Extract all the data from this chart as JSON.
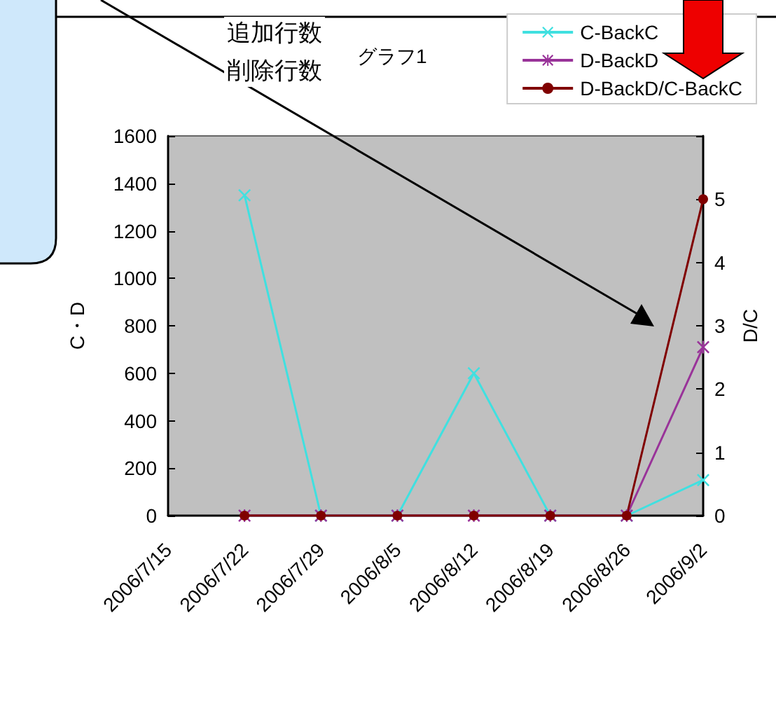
{
  "chart_data": {
    "type": "line",
    "title": "グラフ1",
    "xlabel": null,
    "ylabel": "C・D",
    "y2label": "D/C",
    "annotations": [
      "追加行数",
      "削除行数"
    ],
    "categories": [
      "2006/7/15",
      "2006/7/22",
      "2006/7/29",
      "2006/8/5",
      "2006/8/12",
      "2006/8/19",
      "2006/8/26",
      "2006/9/2"
    ],
    "series": [
      {
        "name": "C-BackC",
        "color": "#40e0e0",
        "marker": "cross",
        "values": [
          null,
          1350,
          0,
          0,
          600,
          0,
          0,
          150
        ]
      },
      {
        "name": "D-BackD",
        "color": "#993399",
        "marker": "star",
        "values": [
          null,
          0,
          0,
          0,
          0,
          0,
          0,
          710
        ]
      },
      {
        "name": "D-BackD/C-BackC",
        "color": "#800000",
        "marker": "circle",
        "axis": "y2",
        "values": [
          null,
          0,
          0,
          0,
          0,
          0,
          0,
          5
        ]
      }
    ],
    "ylim": [
      0,
      1600
    ],
    "yticks": [
      0,
      200,
      400,
      600,
      800,
      1000,
      1200,
      1400,
      1600
    ],
    "y2lim": [
      0,
      6
    ],
    "y2ticks": [
      0,
      1,
      2,
      3,
      4,
      5,
      {
        "value": 6,
        "label": null
      }
    ],
    "grid": false,
    "legend": "top right"
  }
}
